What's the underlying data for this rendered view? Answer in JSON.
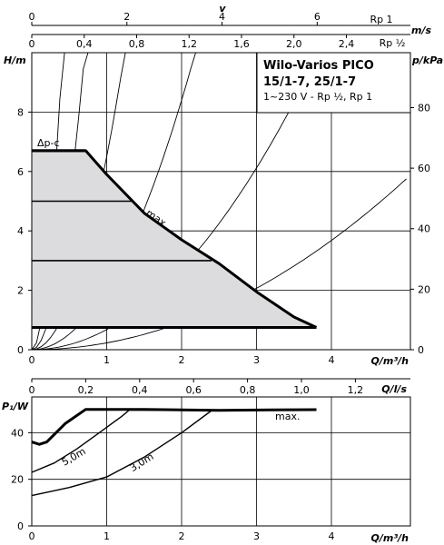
{
  "title": {
    "line1": "Wilo-Varios PICO",
    "line2": "15/1-7, 25/1-7",
    "line3": "1~230 V - Rp ½, Rp 1"
  },
  "chart_data": [
    {
      "type": "line",
      "name": "head-curve",
      "xlabel": "Q/m³/h",
      "ylabel": "H/m",
      "y2label": "p/kPa",
      "xlim": [
        0,
        5
      ],
      "ylim": [
        0,
        10
      ],
      "x_ticks": [
        "0",
        "1",
        "2",
        "3",
        "4"
      ],
      "y_ticks": [
        "0",
        "2",
        "4",
        "6",
        "8"
      ],
      "y2_ticks": [
        "0",
        "20",
        "40",
        "60",
        "80"
      ],
      "top_axis_1": {
        "label": "v",
        "unit": "m/s",
        "pipe": "Rp 1",
        "ticks": [
          "0",
          "2",
          "4",
          "6"
        ],
        "tick_q": [
          0,
          1.27,
          2.54,
          3.81
        ]
      },
      "top_axis_2": {
        "unit": "m/s",
        "pipe": "Rp ½",
        "ticks": [
          "0",
          "0,4",
          "0,8",
          "1,2",
          "1,6",
          "2,0",
          "2,4"
        ],
        "tick_q": [
          0,
          0.7,
          1.4,
          2.1,
          2.8,
          3.5,
          4.2
        ]
      },
      "mode_label": "Δp-c",
      "max_label": "max.",
      "max_curve": {
        "x": [
          0,
          0.72,
          1.0,
          1.5,
          2.0,
          2.5,
          3.0,
          3.5,
          3.8
        ],
        "y": [
          6.7,
          6.7,
          5.9,
          4.6,
          3.7,
          2.9,
          1.95,
          1.1,
          0.75
        ]
      },
      "setpoint_lines": [
        {
          "h": 6.7,
          "q_end": 0.72
        },
        {
          "h": 5.0,
          "q_end": 1.35
        },
        {
          "h": 3.0,
          "q_end": 2.4
        },
        {
          "h": 0.75,
          "q_end": 3.8
        }
      ],
      "system_curves_k": [
        60,
        20,
        6.5,
        2.1,
        0.68,
        0.23
      ]
    },
    {
      "type": "line",
      "name": "power-curve",
      "xlabel": "Q/m³/h",
      "ylabel": "P₁/W",
      "x2label": "Q/l/s",
      "xlim": [
        0,
        5
      ],
      "ylim": [
        0,
        60
      ],
      "x_ticks": [
        "0",
        "1",
        "2",
        "3",
        "4"
      ],
      "y_ticks": [
        "0",
        "20",
        "40"
      ],
      "top_ticks": [
        "0",
        "0,2",
        "0,4",
        "0,6",
        "0,8",
        "1,0",
        "1,2"
      ],
      "top_tick_q": [
        0,
        0.72,
        1.44,
        2.16,
        2.88,
        3.6,
        4.32
      ],
      "series": [
        {
          "name": "max.",
          "x": [
            0,
            0.1,
            0.2,
            0.45,
            0.72,
            1.5,
            2.5,
            3.2,
            3.8
          ],
          "y": [
            36,
            35,
            36,
            44,
            50,
            50,
            49.6,
            49.8,
            49.9
          ]
        },
        {
          "name": "5,0m",
          "x": [
            0,
            0.3,
            0.6,
            0.9,
            1.2,
            1.3,
            2.0,
            2.4
          ],
          "y": [
            23,
            27,
            33,
            40,
            47,
            49.7,
            49.7,
            49.6
          ]
        },
        {
          "name": "3,0m",
          "x": [
            0,
            0.5,
            1.0,
            1.5,
            2.0,
            2.4
          ],
          "y": [
            13,
            16.5,
            21,
            29.5,
            40,
            49.5
          ]
        }
      ]
    }
  ]
}
